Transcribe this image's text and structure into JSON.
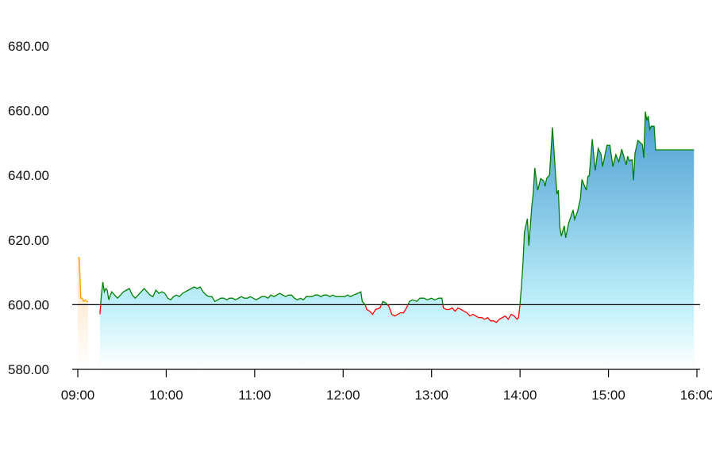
{
  "chart_data": {
    "type": "area",
    "title": "",
    "xlabel": "",
    "ylabel": "",
    "ylim": [
      580,
      680
    ],
    "yticks": [
      "580.00",
      "600.00",
      "620.00",
      "640.00",
      "660.00",
      "680.00"
    ],
    "xlim": [
      "09:00",
      "16:00"
    ],
    "xticks": [
      "09:00",
      "10:00",
      "11:00",
      "12:00",
      "13:00",
      "14:00",
      "15:00",
      "16:00"
    ],
    "baseline": 600,
    "grid": false,
    "colors": {
      "up": "#008000",
      "down": "#ff0000",
      "pre": "#ffa500",
      "fill_top": "#4a9cd2",
      "fill_mid": "#bff0fa",
      "baseline": "#000000"
    },
    "pre_series": [
      [
        "09:00",
        614.5
      ],
      [
        "09:01",
        614.5
      ],
      [
        "09:02",
        602
      ],
      [
        "09:03",
        602
      ],
      [
        "09:04",
        601
      ],
      [
        "09:05",
        601.5
      ],
      [
        "09:06",
        601
      ],
      [
        "09:07",
        601
      ]
    ],
    "series": [
      [
        "09:15",
        597
      ],
      [
        "09:16",
        603
      ],
      [
        "09:17",
        607
      ],
      [
        "09:18",
        604
      ],
      [
        "09:19",
        605
      ],
      [
        "09:20",
        604.5
      ],
      [
        "09:21",
        601.5
      ],
      [
        "09:23",
        604
      ],
      [
        "09:25",
        603
      ],
      [
        "09:27",
        602
      ],
      [
        "09:29",
        603
      ],
      [
        "09:31",
        604
      ],
      [
        "09:33",
        604.5
      ],
      [
        "09:35",
        605
      ],
      [
        "09:37",
        603
      ],
      [
        "09:39",
        602
      ],
      [
        "09:41",
        603
      ],
      [
        "09:43",
        604
      ],
      [
        "09:45",
        605
      ],
      [
        "09:47",
        604
      ],
      [
        "09:49",
        603
      ],
      [
        "09:51",
        602.5
      ],
      [
        "09:53",
        604.5
      ],
      [
        "09:55",
        603.5
      ],
      [
        "09:57",
        604
      ],
      [
        "09:59",
        603.5
      ],
      [
        "10:01",
        602
      ],
      [
        "10:03",
        601.5
      ],
      [
        "10:05",
        602.5
      ],
      [
        "10:07",
        603
      ],
      [
        "10:09",
        602.5
      ],
      [
        "10:11",
        603.5
      ],
      [
        "10:13",
        604
      ],
      [
        "10:15",
        604.5
      ],
      [
        "10:17",
        605
      ],
      [
        "10:19",
        605.5
      ],
      [
        "10:21",
        605
      ],
      [
        "10:23",
        605.5
      ],
      [
        "10:25",
        604
      ],
      [
        "10:27",
        603
      ],
      [
        "10:29",
        602.5
      ],
      [
        "10:31",
        602.5
      ],
      [
        "10:33",
        601
      ],
      [
        "10:35",
        601.5
      ],
      [
        "10:37",
        602
      ],
      [
        "10:39",
        602
      ],
      [
        "10:41",
        601.5
      ],
      [
        "10:43",
        602
      ],
      [
        "10:45",
        602
      ],
      [
        "10:47",
        601.5
      ],
      [
        "10:49",
        602
      ],
      [
        "10:51",
        602.5
      ],
      [
        "10:53",
        602
      ],
      [
        "10:55",
        602
      ],
      [
        "10:57",
        602.5
      ],
      [
        "10:59",
        602
      ],
      [
        "11:01",
        601.5
      ],
      [
        "11:03",
        602
      ],
      [
        "11:05",
        602.5
      ],
      [
        "11:07",
        602.5
      ],
      [
        "11:09",
        602
      ],
      [
        "11:11",
        603
      ],
      [
        "11:13",
        602.5
      ],
      [
        "11:15",
        603
      ],
      [
        "11:17",
        603.5
      ],
      [
        "11:19",
        603
      ],
      [
        "11:21",
        602.5
      ],
      [
        "11:23",
        603
      ],
      [
        "11:25",
        603
      ],
      [
        "11:27",
        602
      ],
      [
        "11:29",
        601.5
      ],
      [
        "11:31",
        602
      ],
      [
        "11:33",
        601.5
      ],
      [
        "11:35",
        602.5
      ],
      [
        "11:37",
        602.5
      ],
      [
        "11:39",
        602.5
      ],
      [
        "11:41",
        603
      ],
      [
        "11:43",
        603
      ],
      [
        "11:45",
        602.5
      ],
      [
        "11:47",
        603
      ],
      [
        "11:49",
        603
      ],
      [
        "11:51",
        602.5
      ],
      [
        "11:53",
        603
      ],
      [
        "11:55",
        602.5
      ],
      [
        "11:57",
        602.5
      ],
      [
        "11:59",
        602.5
      ],
      [
        "12:01",
        602.5
      ],
      [
        "12:03",
        603
      ],
      [
        "12:05",
        602.5
      ],
      [
        "12:07",
        603
      ],
      [
        "12:10",
        603.5
      ],
      [
        "12:12",
        604
      ],
      [
        "12:13",
        601
      ],
      [
        "12:15",
        600
      ],
      [
        "12:16",
        598.5
      ],
      [
        "12:18",
        598
      ],
      [
        "12:20",
        597
      ],
      [
        "12:22",
        598.5
      ],
      [
        "12:25",
        599
      ],
      [
        "12:27",
        601
      ],
      [
        "12:29",
        600.5
      ],
      [
        "12:31",
        599.5
      ],
      [
        "12:33",
        597
      ],
      [
        "12:35",
        596.5
      ],
      [
        "12:37",
        597
      ],
      [
        "12:39",
        597.5
      ],
      [
        "12:41",
        597.5
      ],
      [
        "12:43",
        599
      ],
      [
        "12:45",
        601
      ],
      [
        "12:47",
        601.5
      ],
      [
        "12:50",
        601
      ],
      [
        "12:52",
        602
      ],
      [
        "12:55",
        602
      ],
      [
        "12:57",
        601.5
      ],
      [
        "13:00",
        602
      ],
      [
        "13:02",
        601.5
      ],
      [
        "13:05",
        602
      ],
      [
        "13:07",
        602
      ],
      [
        "13:08",
        599
      ],
      [
        "13:10",
        598.5
      ],
      [
        "13:12",
        598.5
      ],
      [
        "13:14",
        599
      ],
      [
        "13:16",
        598
      ],
      [
        "13:18",
        599
      ],
      [
        "13:20",
        598.5
      ],
      [
        "13:22",
        598
      ],
      [
        "13:24",
        597.5
      ],
      [
        "13:26",
        596.5
      ],
      [
        "13:28",
        597
      ],
      [
        "13:30",
        596.5
      ],
      [
        "13:32",
        596
      ],
      [
        "13:34",
        596
      ],
      [
        "13:36",
        595.5
      ],
      [
        "13:38",
        596
      ],
      [
        "13:40",
        595
      ],
      [
        "13:42",
        595
      ],
      [
        "13:44",
        594.5
      ],
      [
        "13:46",
        595.5
      ],
      [
        "13:48",
        596
      ],
      [
        "13:50",
        596.5
      ],
      [
        "13:52",
        595.5
      ],
      [
        "13:54",
        597
      ],
      [
        "13:56",
        596.5
      ],
      [
        "13:58",
        595.5
      ],
      [
        "13:59",
        596
      ],
      [
        "14:00",
        600
      ],
      [
        "14:01",
        606
      ],
      [
        "14:02",
        613
      ],
      [
        "14:03",
        622.4
      ],
      [
        "14:05",
        626.6
      ],
      [
        "14:06",
        618.2
      ],
      [
        "14:08",
        630.5
      ],
      [
        "14:09",
        634.6
      ],
      [
        "14:10",
        642.3
      ],
      [
        "14:12",
        635.4
      ],
      [
        "14:14",
        639
      ],
      [
        "14:16",
        638.3
      ],
      [
        "14:17",
        636.6
      ],
      [
        "14:18",
        639
      ],
      [
        "14:20",
        640.1
      ],
      [
        "14:22",
        654.8
      ],
      [
        "14:25",
        634.2
      ],
      [
        "14:26",
        635.4
      ],
      [
        "14:27",
        624
      ],
      [
        "14:28",
        621.2
      ],
      [
        "14:30",
        624.4
      ],
      [
        "14:31",
        620.7
      ],
      [
        "14:33",
        625.2
      ],
      [
        "14:36",
        629.3
      ],
      [
        "14:37",
        626.4
      ],
      [
        "14:39",
        628.8
      ],
      [
        "14:41",
        632.9
      ],
      [
        "14:42",
        638.7
      ],
      [
        "14:45",
        635.4
      ],
      [
        "14:46",
        639.6
      ],
      [
        "14:47",
        639.9
      ],
      [
        "14:49",
        651.2
      ],
      [
        "14:51",
        641.5
      ],
      [
        "14:53",
        648.3
      ],
      [
        "14:55",
        646.4
      ],
      [
        "14:56",
        642.7
      ],
      [
        "14:59",
        649.3
      ],
      [
        "15:01",
        649.3
      ],
      [
        "15:03",
        642.7
      ],
      [
        "15:05",
        646.4
      ],
      [
        "15:07",
        644.2
      ],
      [
        "15:09",
        648.1
      ],
      [
        "15:12",
        643.2
      ],
      [
        "15:13",
        645.9
      ],
      [
        "15:14",
        644.5
      ],
      [
        "15:16",
        644.8
      ],
      [
        "15:17",
        638.5
      ],
      [
        "15:18",
        646.8
      ],
      [
        "15:20",
        650.8
      ],
      [
        "15:23",
        649.5
      ],
      [
        "15:24",
        645.4
      ],
      [
        "15:25",
        659.7
      ],
      [
        "15:26",
        657
      ],
      [
        "15:27",
        658.3
      ],
      [
        "15:28",
        654.2
      ],
      [
        "15:29",
        655.2
      ],
      [
        "15:31",
        655.2
      ],
      [
        "15:32",
        647.9
      ],
      [
        "15:58",
        647.9
      ]
    ]
  }
}
